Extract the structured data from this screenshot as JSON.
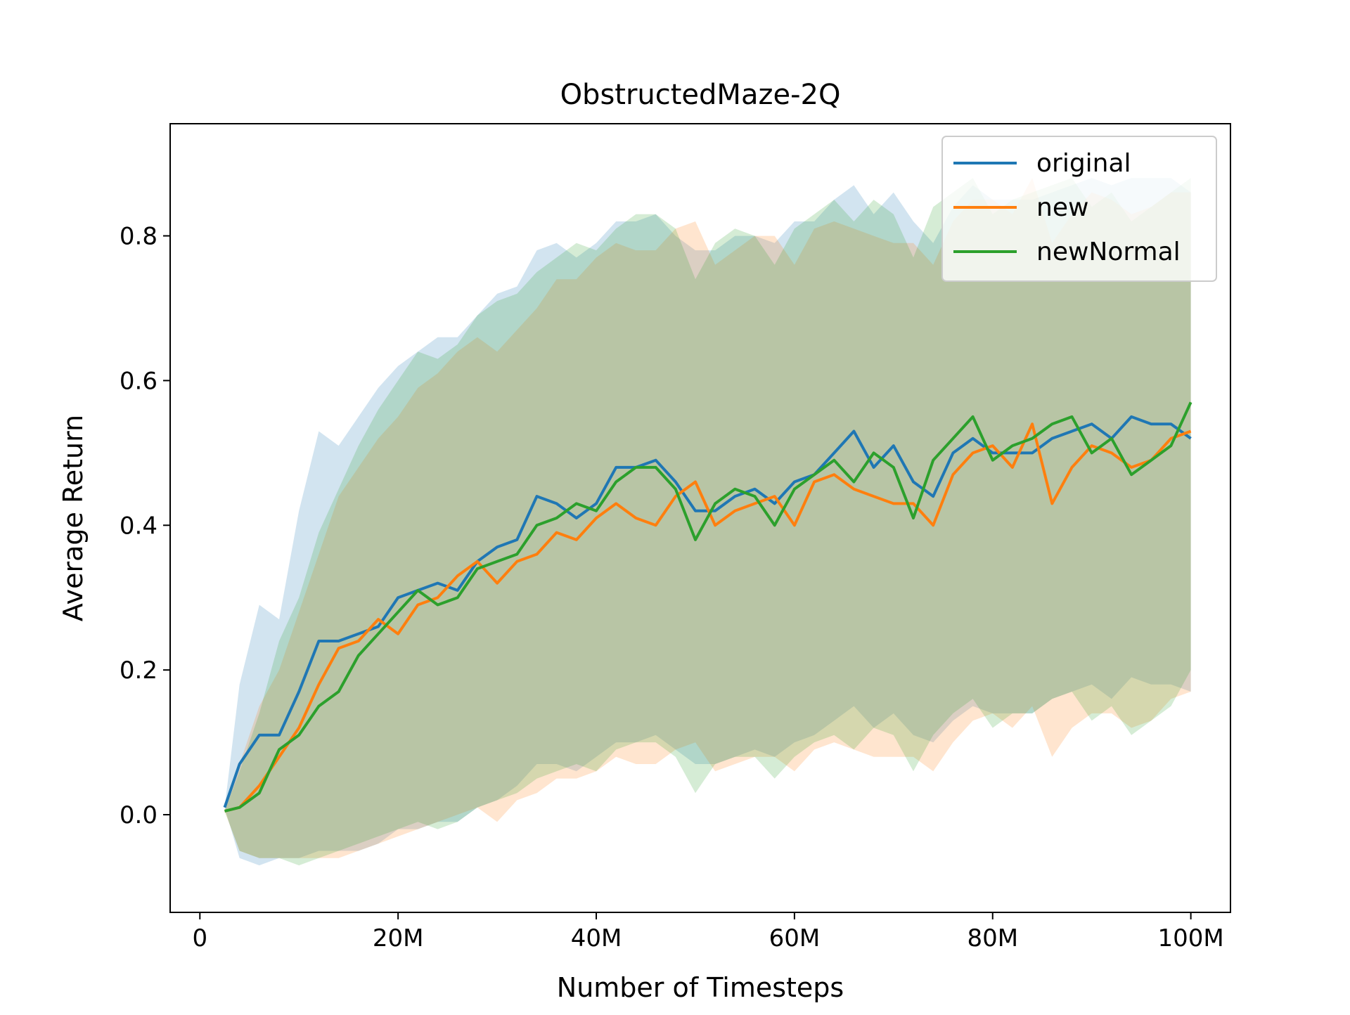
{
  "chart_data": {
    "type": "line",
    "title": "ObstructedMaze-2Q",
    "xlabel": "Number of Timesteps",
    "ylabel": "Average Return",
    "xlim": [
      -3,
      104
    ],
    "ylim": [
      -0.135,
      0.955
    ],
    "x_unit": "million timesteps",
    "xticks": [
      {
        "value": 0,
        "label": "0"
      },
      {
        "value": 20,
        "label": "20M"
      },
      {
        "value": 40,
        "label": "40M"
      },
      {
        "value": 60,
        "label": "60M"
      },
      {
        "value": 80,
        "label": "80M"
      },
      {
        "value": 100,
        "label": "100M"
      }
    ],
    "yticks": [
      {
        "value": 0.0,
        "label": "0.0"
      },
      {
        "value": 0.2,
        "label": "0.2"
      },
      {
        "value": 0.4,
        "label": "0.4"
      },
      {
        "value": 0.6,
        "label": "0.6"
      },
      {
        "value": 0.8,
        "label": "0.8"
      }
    ],
    "grid": false,
    "legend_position": "top-right",
    "shaded_band_alpha": 0.2,
    "x": [
      2.5,
      4,
      6,
      8,
      10,
      12,
      14,
      16,
      18,
      20,
      22,
      24,
      26,
      28,
      30,
      32,
      34,
      36,
      38,
      40,
      42,
      44,
      46,
      48,
      50,
      52,
      54,
      56,
      58,
      60,
      62,
      64,
      66,
      68,
      70,
      72,
      74,
      76,
      78,
      80,
      82,
      84,
      86,
      88,
      90,
      92,
      94,
      96,
      98,
      100
    ],
    "series": [
      {
        "name": "original",
        "color": "#1f77b4",
        "values": [
          0.01,
          0.07,
          0.11,
          0.11,
          0.17,
          0.24,
          0.24,
          0.25,
          0.26,
          0.3,
          0.31,
          0.32,
          0.31,
          0.35,
          0.37,
          0.38,
          0.44,
          0.43,
          0.41,
          0.43,
          0.48,
          0.48,
          0.49,
          0.46,
          0.42,
          0.42,
          0.44,
          0.45,
          0.43,
          0.46,
          0.47,
          0.5,
          0.53,
          0.48,
          0.51,
          0.46,
          0.44,
          0.5,
          0.52,
          0.5,
          0.5,
          0.5,
          0.52,
          0.53,
          0.54,
          0.52,
          0.55,
          0.54,
          0.54,
          0.52
        ],
        "upper": [
          0.01,
          0.18,
          0.29,
          0.27,
          0.42,
          0.53,
          0.51,
          0.55,
          0.59,
          0.62,
          0.64,
          0.66,
          0.66,
          0.69,
          0.72,
          0.73,
          0.78,
          0.79,
          0.77,
          0.79,
          0.82,
          0.82,
          0.83,
          0.8,
          0.78,
          0.78,
          0.8,
          0.8,
          0.79,
          0.82,
          0.82,
          0.85,
          0.87,
          0.83,
          0.86,
          0.82,
          0.79,
          0.84,
          0.87,
          0.85,
          0.85,
          0.85,
          0.86,
          0.87,
          0.88,
          0.87,
          0.88,
          0.88,
          0.88,
          0.86
        ],
        "lower": [
          0.01,
          -0.06,
          -0.07,
          -0.06,
          -0.06,
          -0.05,
          -0.05,
          -0.05,
          -0.04,
          -0.02,
          -0.02,
          -0.01,
          -0.01,
          0.01,
          0.02,
          0.04,
          0.07,
          0.07,
          0.06,
          0.08,
          0.1,
          0.1,
          0.11,
          0.09,
          0.07,
          0.07,
          0.08,
          0.09,
          0.08,
          0.1,
          0.11,
          0.13,
          0.15,
          0.12,
          0.14,
          0.11,
          0.1,
          0.13,
          0.15,
          0.14,
          0.14,
          0.14,
          0.16,
          0.17,
          0.18,
          0.16,
          0.19,
          0.18,
          0.18,
          0.17
        ]
      },
      {
        "name": "new",
        "color": "#ff7f0e",
        "values": [
          0.005,
          0.01,
          0.04,
          0.08,
          0.12,
          0.18,
          0.23,
          0.24,
          0.27,
          0.25,
          0.29,
          0.3,
          0.33,
          0.35,
          0.32,
          0.35,
          0.36,
          0.39,
          0.38,
          0.41,
          0.43,
          0.41,
          0.4,
          0.44,
          0.46,
          0.4,
          0.42,
          0.43,
          0.44,
          0.4,
          0.46,
          0.47,
          0.45,
          0.44,
          0.43,
          0.43,
          0.4,
          0.47,
          0.5,
          0.51,
          0.48,
          0.54,
          0.43,
          0.48,
          0.51,
          0.5,
          0.48,
          0.49,
          0.52,
          0.53
        ],
        "upper": [
          0.005,
          0.07,
          0.15,
          0.2,
          0.28,
          0.36,
          0.44,
          0.48,
          0.52,
          0.55,
          0.59,
          0.61,
          0.64,
          0.66,
          0.64,
          0.67,
          0.7,
          0.74,
          0.74,
          0.77,
          0.79,
          0.78,
          0.78,
          0.81,
          0.82,
          0.76,
          0.78,
          0.8,
          0.8,
          0.76,
          0.81,
          0.82,
          0.81,
          0.8,
          0.79,
          0.79,
          0.76,
          0.82,
          0.85,
          0.85,
          0.83,
          0.88,
          0.79,
          0.83,
          0.86,
          0.85,
          0.83,
          0.84,
          0.86,
          0.86
        ],
        "lower": [
          0.005,
          -0.05,
          -0.06,
          -0.06,
          -0.06,
          -0.06,
          -0.06,
          -0.05,
          -0.04,
          -0.03,
          -0.02,
          -0.01,
          0.0,
          0.01,
          -0.01,
          0.02,
          0.03,
          0.05,
          0.05,
          0.06,
          0.08,
          0.07,
          0.07,
          0.09,
          0.1,
          0.06,
          0.07,
          0.08,
          0.08,
          0.06,
          0.09,
          0.1,
          0.09,
          0.08,
          0.08,
          0.08,
          0.06,
          0.1,
          0.13,
          0.14,
          0.12,
          0.15,
          0.08,
          0.12,
          0.14,
          0.14,
          0.12,
          0.13,
          0.16,
          0.17
        ]
      },
      {
        "name": "newNormal",
        "color": "#2ca02c",
        "values": [
          0.005,
          0.01,
          0.03,
          0.09,
          0.11,
          0.15,
          0.17,
          0.22,
          0.25,
          0.28,
          0.31,
          0.29,
          0.3,
          0.34,
          0.35,
          0.36,
          0.4,
          0.41,
          0.43,
          0.42,
          0.46,
          0.48,
          0.48,
          0.45,
          0.38,
          0.43,
          0.45,
          0.44,
          0.4,
          0.45,
          0.47,
          0.49,
          0.46,
          0.5,
          0.48,
          0.41,
          0.49,
          0.52,
          0.55,
          0.49,
          0.51,
          0.52,
          0.54,
          0.55,
          0.5,
          0.52,
          0.47,
          0.49,
          0.51,
          0.57
        ],
        "upper": [
          0.005,
          0.06,
          0.14,
          0.24,
          0.3,
          0.39,
          0.45,
          0.51,
          0.56,
          0.6,
          0.64,
          0.63,
          0.65,
          0.69,
          0.71,
          0.72,
          0.75,
          0.77,
          0.79,
          0.78,
          0.81,
          0.83,
          0.83,
          0.81,
          0.74,
          0.79,
          0.81,
          0.8,
          0.76,
          0.81,
          0.83,
          0.85,
          0.82,
          0.85,
          0.83,
          0.77,
          0.84,
          0.86,
          0.88,
          0.83,
          0.85,
          0.86,
          0.87,
          0.88,
          0.84,
          0.86,
          0.82,
          0.84,
          0.86,
          0.88
        ],
        "lower": [
          0.005,
          -0.05,
          -0.06,
          -0.06,
          -0.07,
          -0.06,
          -0.05,
          -0.04,
          -0.03,
          -0.02,
          -0.01,
          -0.02,
          -0.01,
          0.01,
          0.02,
          0.03,
          0.05,
          0.06,
          0.07,
          0.06,
          0.09,
          0.1,
          0.1,
          0.08,
          0.03,
          0.07,
          0.08,
          0.08,
          0.05,
          0.08,
          0.1,
          0.11,
          0.09,
          0.12,
          0.11,
          0.06,
          0.11,
          0.14,
          0.16,
          0.12,
          0.14,
          0.14,
          0.16,
          0.17,
          0.13,
          0.15,
          0.11,
          0.13,
          0.15,
          0.2
        ]
      }
    ]
  }
}
